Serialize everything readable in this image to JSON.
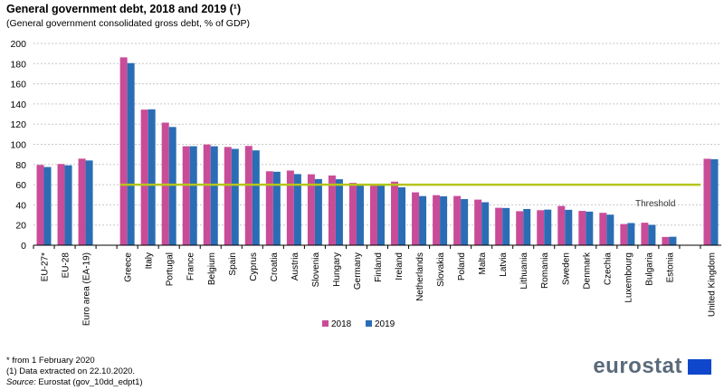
{
  "chart_data": {
    "type": "bar",
    "title": "General government debt, 2018 and 2019 (¹)",
    "subtitle": "(General government  consolidated gross debt, % of GDP)",
    "ylim": [
      0,
      200
    ],
    "yticks": [
      0,
      20,
      40,
      60,
      80,
      100,
      120,
      140,
      160,
      180,
      200
    ],
    "grid": true,
    "legend_placement": "bottom-center",
    "categories": [
      "EU-27*",
      "EU-28",
      "Euro area (EA-19)",
      "",
      "Greece",
      "Italy",
      "Portugal",
      "France",
      "Belgium",
      "Spain",
      "Cyprus",
      "Croatia",
      "Austria",
      "Slovenia",
      "Hungary",
      "Germany",
      "Finland",
      "Ireland",
      "Netherlands",
      "Slovakia",
      "Poland",
      "Malta",
      "Latvia",
      "Lithuania",
      "Romania",
      "Sweden",
      "Denmark",
      "Czechia",
      "Luxembourg",
      "Bulgaria",
      "Estonia",
      "",
      "United Kingdom"
    ],
    "series": [
      {
        "name": "2018",
        "color": "#c94c98",
        "values": [
          79.6,
          80.5,
          85.8,
          null,
          186.2,
          134.4,
          121.5,
          98.1,
          99.8,
          97.4,
          98.4,
          73.3,
          74.0,
          70.3,
          69.1,
          61.8,
          59.6,
          63.0,
          52.4,
          49.6,
          48.8,
          45.2,
          37.1,
          33.7,
          34.7,
          38.9,
          34.0,
          32.1,
          21.0,
          22.3,
          8.2,
          null,
          85.7
        ]
      },
      {
        "name": "2019",
        "color": "#2a6db5",
        "values": [
          77.5,
          79.2,
          84.0,
          null,
          180.5,
          134.7,
          117.2,
          98.1,
          98.1,
          95.5,
          94.0,
          72.8,
          70.5,
          65.6,
          65.4,
          59.6,
          59.3,
          57.4,
          48.7,
          48.5,
          45.7,
          42.6,
          36.9,
          35.9,
          35.3,
          35.1,
          33.3,
          30.3,
          22.0,
          20.2,
          8.4,
          null,
          85.2
        ]
      }
    ],
    "threshold": {
      "label": "Threshold",
      "value": 60,
      "color": "#b5c51a"
    }
  },
  "footnotes": [
    "* from 1 February 2020",
    "(1) Data extracted on 22.10.2020."
  ],
  "source_label": "Source:",
  "source_text": " Eurostat (gov_10dd_edpt1)",
  "logo": "eurostat"
}
